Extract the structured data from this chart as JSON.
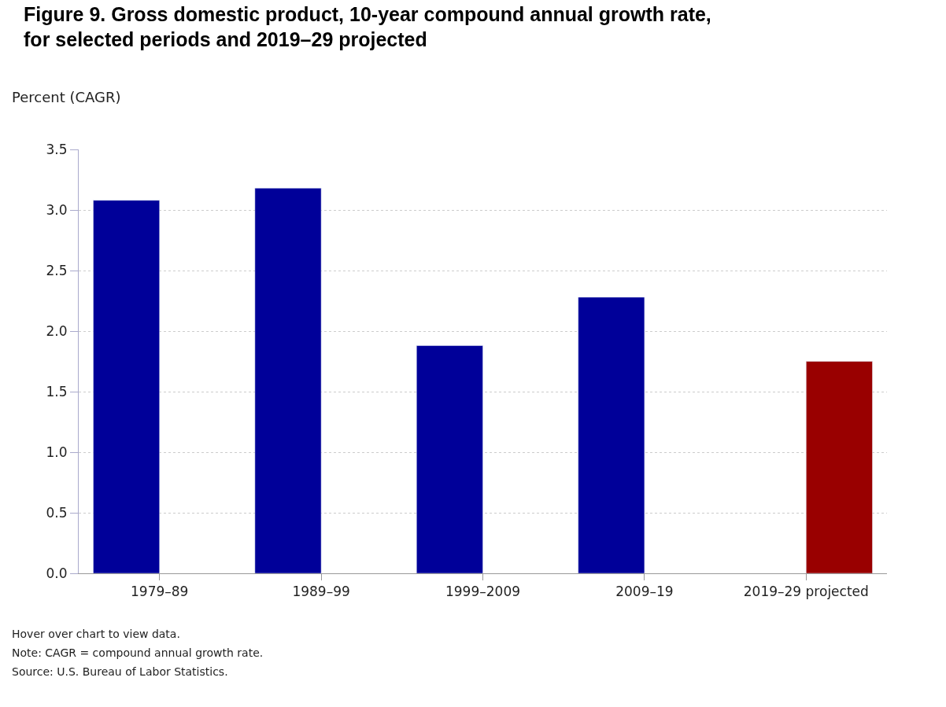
{
  "chart_data": {
    "type": "bar",
    "title": "Figure 9. Gross domestic product, 10-year compound annual growth rate, for selected periods and 2019–29 projected",
    "ylabel": "Percent (CAGR)",
    "categories": [
      "1979–89",
      "1989–99",
      "1999–2009",
      "2009–19",
      "2019–29 projected"
    ],
    "series": [
      {
        "color": "#000099",
        "values": [
          3.08,
          3.18,
          1.88,
          2.28,
          null
        ]
      },
      {
        "color": "#990000",
        "values": [
          null,
          null,
          null,
          null,
          1.75
        ]
      }
    ],
    "ylim": [
      0,
      3.5
    ],
    "yticks": [
      {
        "value": 0,
        "label": "0.0"
      },
      {
        "value": 0.5,
        "label": "0.5"
      },
      {
        "value": 1,
        "label": "1.0"
      },
      {
        "value": 1.5,
        "label": "1.5"
      },
      {
        "value": 2,
        "label": "2.0"
      },
      {
        "value": 2.5,
        "label": "2.5"
      },
      {
        "value": 3,
        "label": "3.0"
      },
      {
        "value": 3.5,
        "label": "3.5"
      }
    ],
    "grid": "y",
    "annotations": [
      "Hover over chart to view data.",
      "Note: CAGR = compound annual growth rate.",
      "Source: U.S. Bureau of Labor Statistics."
    ]
  }
}
